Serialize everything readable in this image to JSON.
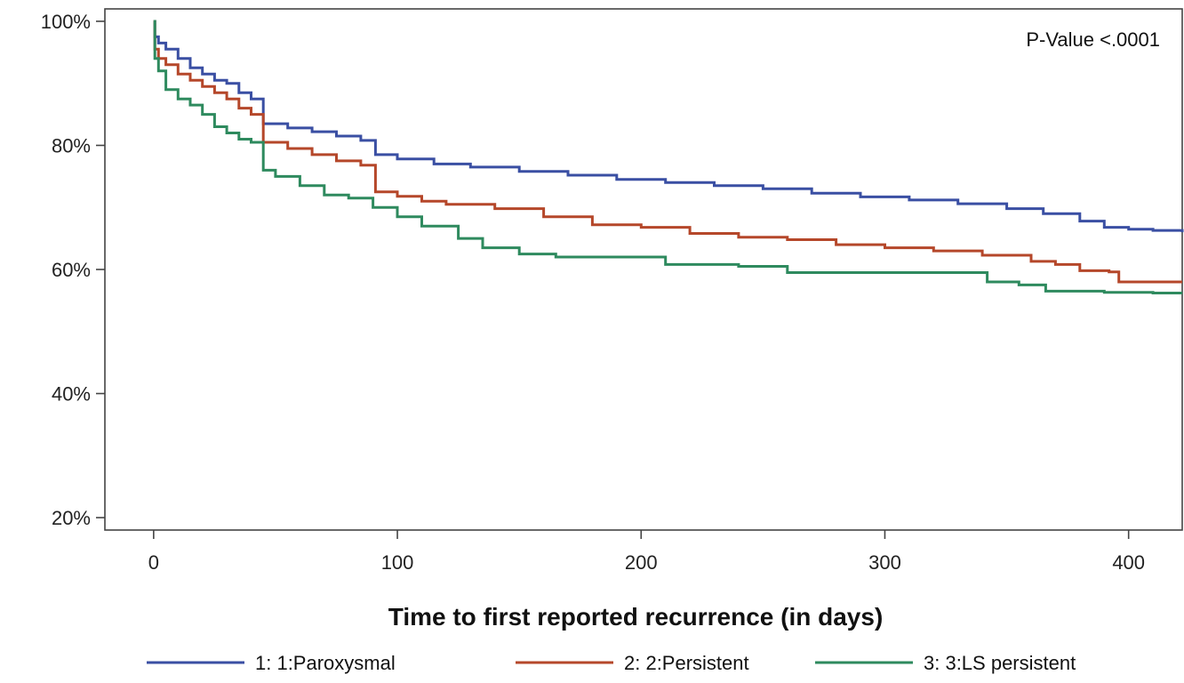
{
  "chart_data": {
    "type": "line",
    "subtype": "kaplan-meier-step",
    "title": "",
    "xlabel": "Time to first reported recurrence (in days)",
    "ylabel": "",
    "xlim": [
      -20,
      422
    ],
    "ylim": [
      18,
      102
    ],
    "x_ticks": [
      0,
      100,
      200,
      300,
      400
    ],
    "x_tick_labels": [
      "0",
      "100",
      "200",
      "300",
      "400"
    ],
    "y_ticks": [
      20,
      40,
      60,
      80,
      100
    ],
    "y_tick_labels": [
      "20%",
      "40%",
      "60%",
      "80%",
      "100%"
    ],
    "grid": false,
    "legend_position": "bottom",
    "annotation": "P-Value <.0001",
    "series": [
      {
        "name": "1: 1:Paroxysmal",
        "color": "#3a4fa3",
        "points": [
          [
            0,
            100
          ],
          [
            0.5,
            97.5
          ],
          [
            2,
            96.5
          ],
          [
            5,
            95.5
          ],
          [
            10,
            94
          ],
          [
            15,
            92.5
          ],
          [
            20,
            91.5
          ],
          [
            25,
            90.5
          ],
          [
            30,
            90
          ],
          [
            35,
            88.5
          ],
          [
            40,
            87.5
          ],
          [
            45,
            86.5
          ],
          [
            45,
            83.5
          ],
          [
            55,
            82.8
          ],
          [
            65,
            82.2
          ],
          [
            75,
            81.5
          ],
          [
            85,
            80.8
          ],
          [
            91,
            80.5
          ],
          [
            91,
            78.5
          ],
          [
            100,
            77.8
          ],
          [
            115,
            77
          ],
          [
            130,
            76.5
          ],
          [
            150,
            75.8
          ],
          [
            170,
            75.2
          ],
          [
            190,
            74.5
          ],
          [
            210,
            74
          ],
          [
            230,
            73.5
          ],
          [
            250,
            73
          ],
          [
            270,
            72.3
          ],
          [
            290,
            71.7
          ],
          [
            310,
            71.2
          ],
          [
            330,
            70.6
          ],
          [
            350,
            69.8
          ],
          [
            365,
            69
          ],
          [
            380,
            67.8
          ],
          [
            390,
            66.8
          ],
          [
            400,
            66.5
          ],
          [
            410,
            66.3
          ],
          [
            422,
            66
          ]
        ]
      },
      {
        "name": "2: 2:Persistent",
        "color": "#b5472a",
        "points": [
          [
            0,
            100
          ],
          [
            0.5,
            95.5
          ],
          [
            2,
            94
          ],
          [
            5,
            93
          ],
          [
            10,
            91.5
          ],
          [
            15,
            90.5
          ],
          [
            20,
            89.5
          ],
          [
            25,
            88.5
          ],
          [
            30,
            87.5
          ],
          [
            35,
            86
          ],
          [
            40,
            85
          ],
          [
            45,
            84
          ],
          [
            45,
            80.5
          ],
          [
            55,
            79.5
          ],
          [
            65,
            78.5
          ],
          [
            75,
            77.5
          ],
          [
            85,
            76.8
          ],
          [
            91,
            76
          ],
          [
            91,
            72.5
          ],
          [
            100,
            71.8
          ],
          [
            110,
            71
          ],
          [
            120,
            70.5
          ],
          [
            140,
            69.8
          ],
          [
            160,
            68.5
          ],
          [
            180,
            67.2
          ],
          [
            200,
            66.8
          ],
          [
            220,
            65.8
          ],
          [
            240,
            65.2
          ],
          [
            260,
            64.8
          ],
          [
            280,
            64
          ],
          [
            300,
            63.5
          ],
          [
            320,
            63
          ],
          [
            340,
            62.3
          ],
          [
            360,
            61.3
          ],
          [
            370,
            60.8
          ],
          [
            380,
            59.8
          ],
          [
            392,
            59.6
          ],
          [
            396,
            58
          ],
          [
            410,
            58
          ],
          [
            422,
            58
          ]
        ]
      },
      {
        "name": "3: 3:LS persistent",
        "color": "#2e8a5e",
        "points": [
          [
            0,
            100
          ],
          [
            0.5,
            94
          ],
          [
            2,
            92
          ],
          [
            5,
            89
          ],
          [
            10,
            87.5
          ],
          [
            15,
            86.5
          ],
          [
            20,
            85
          ],
          [
            25,
            83
          ],
          [
            30,
            82
          ],
          [
            35,
            81
          ],
          [
            40,
            80.5
          ],
          [
            45,
            80
          ],
          [
            45,
            76
          ],
          [
            50,
            75
          ],
          [
            60,
            73.5
          ],
          [
            70,
            72
          ],
          [
            80,
            71.5
          ],
          [
            90,
            70
          ],
          [
            100,
            68.5
          ],
          [
            110,
            67
          ],
          [
            125,
            65
          ],
          [
            135,
            63.5
          ],
          [
            150,
            62.5
          ],
          [
            165,
            62
          ],
          [
            185,
            62
          ],
          [
            200,
            62
          ],
          [
            210,
            60.8
          ],
          [
            240,
            60.5
          ],
          [
            260,
            59.5
          ],
          [
            300,
            59.5
          ],
          [
            340,
            59.5
          ],
          [
            342,
            58
          ],
          [
            355,
            57.5
          ],
          [
            366,
            56.5
          ],
          [
            390,
            56.3
          ],
          [
            410,
            56.2
          ],
          [
            422,
            56.2
          ]
        ]
      }
    ]
  }
}
